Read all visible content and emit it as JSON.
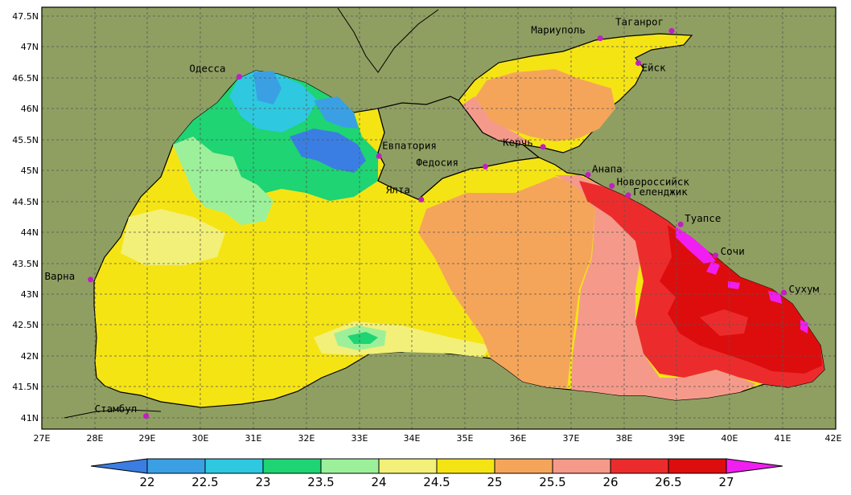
{
  "map": {
    "lat_ticks": [
      "47.5N",
      "47N",
      "46.5N",
      "46N",
      "45.5N",
      "45N",
      "44.5N",
      "44N",
      "43.5N",
      "43N",
      "42.5N",
      "42N",
      "41.5N",
      "41N"
    ],
    "lon_ticks": [
      "27E",
      "28E",
      "29E",
      "30E",
      "31E",
      "32E",
      "33E",
      "34E",
      "35E",
      "36E",
      "37E",
      "38E",
      "39E",
      "40E",
      "41E",
      "42E"
    ],
    "lat_range": [
      40.8,
      47.6
    ],
    "lon_range": [
      27,
      42
    ],
    "grid": true,
    "colors": {
      "land": "#8f9f62",
      "city_marker": "#c21ec2",
      "grid": "#555555"
    }
  },
  "cities": [
    {
      "id": "odessa",
      "name": "Одесса",
      "lat": 46.48,
      "lon": 30.73
    },
    {
      "id": "mariupol",
      "name": "Мариуполь",
      "lat": 47.1,
      "lon": 37.55
    },
    {
      "id": "taganrog",
      "name": "Таганрог",
      "lat": 47.22,
      "lon": 38.9
    },
    {
      "id": "yeysk",
      "name": "Ейск",
      "lat": 46.7,
      "lon": 38.27
    },
    {
      "id": "evpatoria",
      "name": "Евпатория",
      "lat": 45.2,
      "lon": 33.37
    },
    {
      "id": "feodosia",
      "name": "Федосия",
      "lat": 45.03,
      "lon": 35.38
    },
    {
      "id": "kerch",
      "name": "Керчь",
      "lat": 45.35,
      "lon": 36.47
    },
    {
      "id": "anapa",
      "name": "Анапа",
      "lat": 44.9,
      "lon": 37.32
    },
    {
      "id": "novorossiysk",
      "name": "Новороссийск",
      "lat": 44.72,
      "lon": 37.77
    },
    {
      "id": "gelendzhik",
      "name": "Геленджик",
      "lat": 44.57,
      "lon": 38.08
    },
    {
      "id": "yalta",
      "name": "Ялта",
      "lat": 44.5,
      "lon": 34.17
    },
    {
      "id": "tuapse",
      "name": "Туапсе",
      "lat": 44.1,
      "lon": 39.07
    },
    {
      "id": "sochi",
      "name": "Сочи",
      "lat": 43.6,
      "lon": 39.73
    },
    {
      "id": "sukhum",
      "name": "Сухум",
      "lat": 43.0,
      "lon": 41.02
    },
    {
      "id": "varna",
      "name": "Варна",
      "lat": 43.21,
      "lon": 27.92
    },
    {
      "id": "istanbul",
      "name": "Стамбул",
      "lat": 41.01,
      "lon": 28.97
    }
  ],
  "colorbar": {
    "labels": [
      "22",
      "22.5",
      "23",
      "23.5",
      "24",
      "24.5",
      "25",
      "25.5",
      "26",
      "26.5",
      "27"
    ],
    "colors": [
      "#3a7ee3",
      "#3aa0e3",
      "#2ec8e0",
      "#1ed473",
      "#9cf09a",
      "#f2f078",
      "#f5e414",
      "#f5a55a",
      "#f59a8a",
      "#ec2c2c",
      "#dd0d0d",
      "#f01ef0"
    ]
  }
}
